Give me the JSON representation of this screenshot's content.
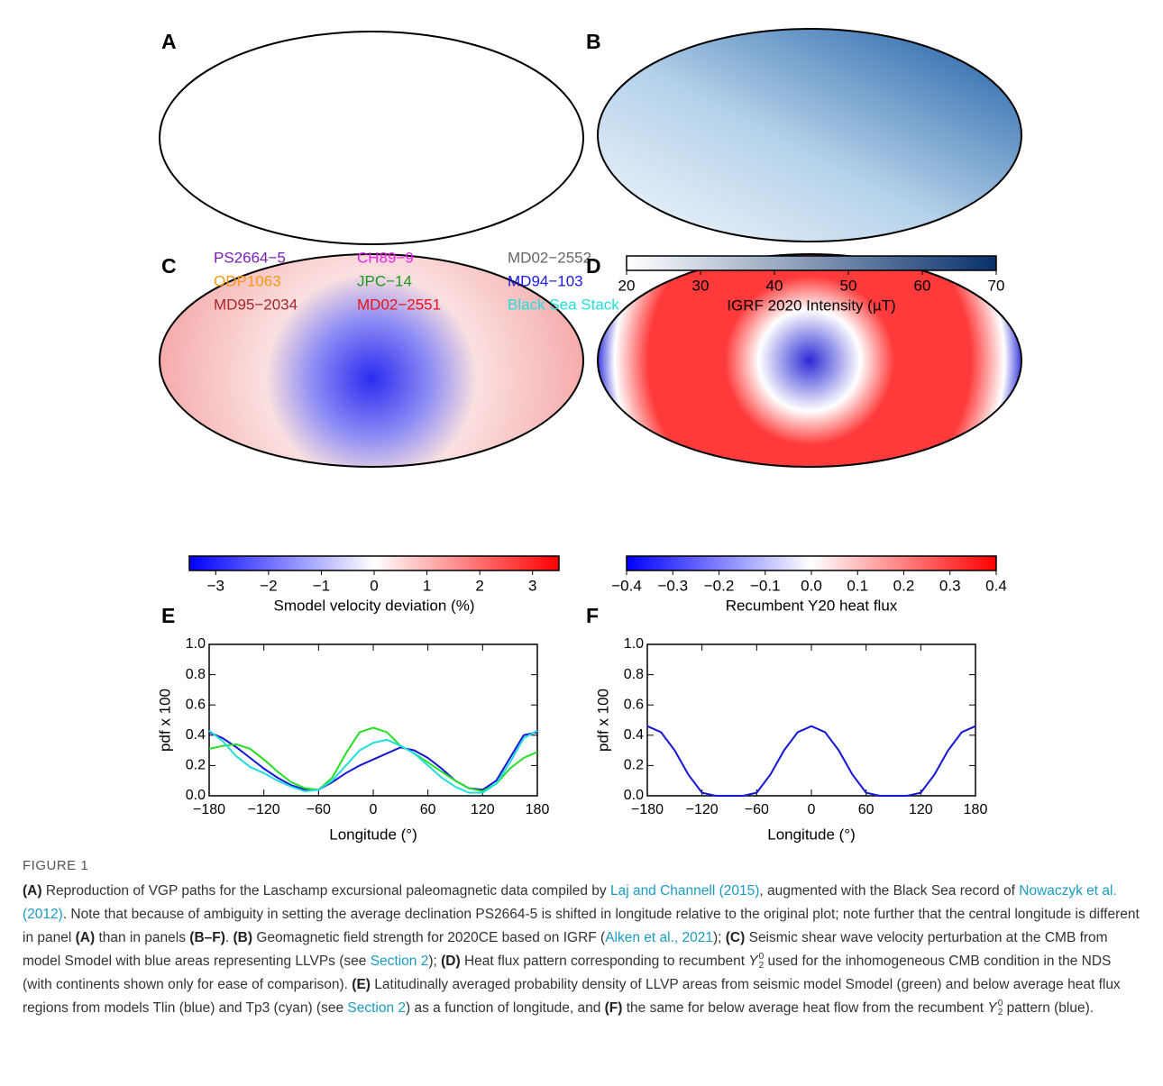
{
  "maps": [
    {
      "label": "A",
      "legend": [
        {
          "name": "PS2664−5",
          "color": "#7a1fb5"
        },
        {
          "name": "ODP1063",
          "color": "#f59a14"
        },
        {
          "name": "MD95−2034",
          "color": "#a8262a"
        },
        {
          "name": "CH89−9",
          "color": "#ee22ee"
        },
        {
          "name": "JPC−14",
          "color": "#1e9a1e"
        },
        {
          "name": "MD02−2551",
          "color": "#ee1111"
        },
        {
          "name": "MD02−2552",
          "color": "#666666"
        },
        {
          "name": "MD94−103",
          "color": "#1a1ae0"
        },
        {
          "name": "Black Sea Stack",
          "color": "#22dddd"
        }
      ]
    },
    {
      "label": "B",
      "colorbar": {
        "label": "IGRF 2020 Intensity (µT)",
        "lim": [
          20,
          70
        ],
        "ticks": [
          20,
          30,
          40,
          50,
          60,
          70
        ],
        "colors": [
          "#ffffff",
          "#08306b"
        ]
      }
    },
    {
      "label": "C",
      "colorbar": {
        "label": "Smodel velocity deviation (%)",
        "lim": [
          -3.5,
          3.5
        ],
        "ticks": [
          {
            "value": -3,
            "label": "−3"
          },
          {
            "value": -2,
            "label": "−2"
          },
          {
            "value": -1,
            "label": "−1"
          },
          0,
          1,
          2,
          3
        ],
        "colors": [
          "#0000ff",
          "#ffffff",
          "#ff0000"
        ]
      }
    },
    {
      "label": "D",
      "colorbar": {
        "label": "Recumbent Y20 heat flux",
        "lim": [
          -0.4,
          0.4
        ],
        "ticks": [
          {
            "value": -0.4,
            "label": "−0.4"
          },
          {
            "value": -0.3,
            "label": "−0.3"
          },
          {
            "value": -0.2,
            "label": "−0.2"
          },
          {
            "value": -0.1,
            "label": "−0.1"
          },
          {
            "value": 0,
            "label": "0.0"
          },
          0.1,
          0.2,
          0.3,
          0.4
        ],
        "colors": [
          "#0000ff",
          "#ffffff",
          "#ff0000"
        ]
      }
    }
  ],
  "chart_data": [
    {
      "type": "line",
      "panel_label": "E",
      "xlabel": "Longitude (°)",
      "ylabel": "pdf x 100",
      "x": [
        -180,
        -165,
        -150,
        -135,
        -120,
        -105,
        -90,
        -75,
        -60,
        -45,
        -30,
        -15,
        0,
        15,
        30,
        45,
        60,
        75,
        90,
        105,
        120,
        135,
        150,
        165,
        180
      ],
      "series": [
        {
          "color": "#1515d8",
          "values": [
            0.42,
            0.38,
            0.32,
            0.25,
            0.18,
            0.12,
            0.07,
            0.04,
            0.04,
            0.09,
            0.15,
            0.2,
            0.24,
            0.28,
            0.32,
            0.3,
            0.25,
            0.18,
            0.1,
            0.05,
            0.04,
            0.1,
            0.25,
            0.4,
            0.42
          ]
        },
        {
          "color": "#22e022",
          "values": [
            0.31,
            0.33,
            0.34,
            0.31,
            0.24,
            0.16,
            0.09,
            0.05,
            0.04,
            0.12,
            0.28,
            0.42,
            0.45,
            0.42,
            0.33,
            0.28,
            0.22,
            0.16,
            0.1,
            0.05,
            0.03,
            0.08,
            0.18,
            0.25,
            0.29
          ]
        },
        {
          "color": "#22dddd",
          "values": [
            0.43,
            0.36,
            0.26,
            0.19,
            0.15,
            0.1,
            0.06,
            0.03,
            0.04,
            0.1,
            0.2,
            0.3,
            0.35,
            0.37,
            0.33,
            0.28,
            0.2,
            0.12,
            0.06,
            0.02,
            0.02,
            0.08,
            0.22,
            0.38,
            0.43
          ]
        }
      ],
      "xlim": [
        -180,
        180
      ],
      "ylim": [
        0,
        1
      ],
      "xticks": [
        {
          "value": -180,
          "label": "−180"
        },
        {
          "value": -120,
          "label": "−120"
        },
        {
          "value": -60,
          "label": "−60"
        },
        0,
        60,
        120,
        180
      ],
      "yticks": [
        {
          "value": 0,
          "label": "0.0"
        },
        0.2,
        0.4,
        0.6,
        0.8,
        {
          "value": 1,
          "label": "1.0"
        }
      ]
    },
    {
      "type": "line",
      "panel_label": "F",
      "xlabel": "Longitude (°)",
      "ylabel": "pdf x 100",
      "x": [
        -180,
        -165,
        -150,
        -135,
        -120,
        -105,
        -90,
        -75,
        -60,
        -45,
        -30,
        -15,
        0,
        15,
        30,
        45,
        60,
        75,
        90,
        105,
        120,
        135,
        150,
        165,
        180
      ],
      "series": [
        {
          "color": "#1515d8",
          "values": [
            0.46,
            0.42,
            0.3,
            0.14,
            0.02,
            0,
            0,
            0,
            0.02,
            0.14,
            0.3,
            0.42,
            0.46,
            0.42,
            0.3,
            0.14,
            0.02,
            0,
            0,
            0,
            0.02,
            0.14,
            0.3,
            0.42,
            0.46
          ]
        }
      ],
      "xlim": [
        -180,
        180
      ],
      "ylim": [
        0,
        1
      ],
      "xticks": [
        {
          "value": -180,
          "label": "−180"
        },
        {
          "value": -120,
          "label": "−120"
        },
        {
          "value": -60,
          "label": "−60"
        },
        0,
        60,
        120,
        180
      ],
      "yticks": [
        {
          "value": 0,
          "label": "0.0"
        },
        0.2,
        0.4,
        0.6,
        0.8,
        {
          "value": 1,
          "label": "1.0"
        }
      ]
    }
  ],
  "caption": {
    "title": "FIGURE 1",
    "parts": [
      "(A)",
      " Reproduction of VGP paths for the Laschamp excursional paleomagnetic data compiled by ",
      "Laj and Channell (2015)",
      ", augmented with the Black Sea record of ",
      "Nowaczyk et al. (2012)",
      ". Note that because of ambiguity in setting the average declination PS2664-5 is shifted in longitude relative to the original plot; note further that the central longitude is different in panel ",
      "(A)",
      " than in panels ",
      "(B–F)",
      ". ",
      "(B)",
      " Geomagnetic field strength for 2020CE based on IGRF (",
      "Alken et al., 2021",
      "); ",
      "(C)",
      " Seismic shear wave velocity perturbation at the CMB from model Smodel with blue areas representing LLVPs (see ",
      "Section 2",
      "); ",
      "(D)",
      " Heat flux pattern corresponding to recumbent ",
      "Y",
      "2",
      "0",
      " used for the inhomogeneous CMB condition in the NDS (with continents shown only for ease of comparison). ",
      "(E)",
      " Latitudinally averaged probability density of LLVP areas from seismic model Smodel (green) and below average heat flux regions from models Tlin (blue) and Tp3 (cyan) (see ",
      "Section 2",
      ") as a function of longitude, and ",
      "(F)",
      " the same for below average heat flow from the recumbent ",
      "Y",
      "2",
      "0",
      " pattern (blue)."
    ]
  }
}
